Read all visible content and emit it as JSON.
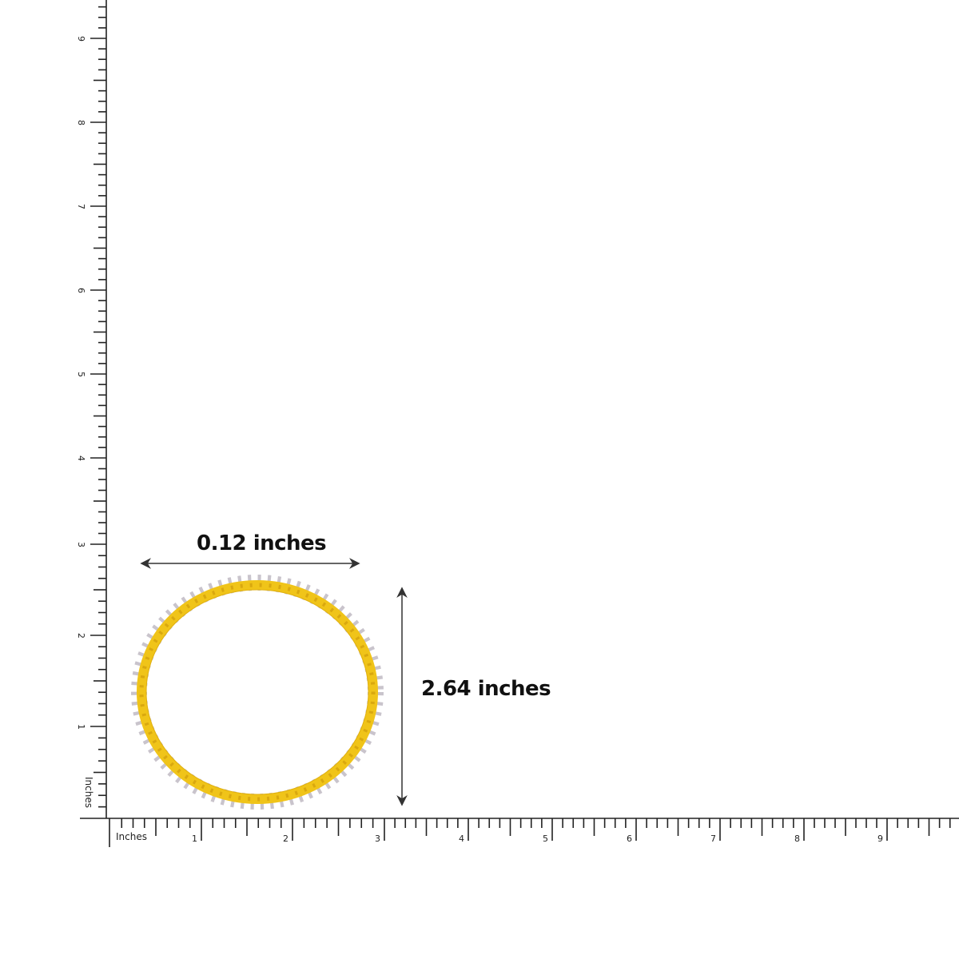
{
  "width_label": "0.12 inches",
  "height_label": "2.64 inches",
  "ruler": {
    "unit_label": "Inches",
    "x_ticks": [
      "1",
      "2",
      "3",
      "4",
      "5",
      "6",
      "7",
      "8",
      "9"
    ],
    "y_ticks": [
      "1",
      "2",
      "3",
      "4",
      "5",
      "6",
      "7",
      "8",
      "9"
    ]
  },
  "colors": {
    "band": "#f0c419",
    "band_shadow": "#d9a80f",
    "stones": "#c9c4cc",
    "ruler": "#222222"
  }
}
